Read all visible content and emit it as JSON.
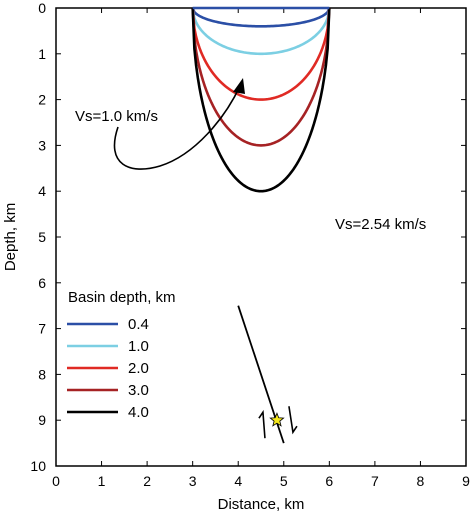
{
  "chart_data": {
    "type": "line",
    "xlabel": "Distance, km",
    "ylabel": "Depth, km",
    "xlim": [
      0,
      9
    ],
    "ylim": [
      0,
      10
    ],
    "y_inverted": true,
    "x_ticks": [
      "0",
      "1",
      "2",
      "3",
      "4",
      "5",
      "6",
      "7",
      "8",
      "9"
    ],
    "y_ticks": [
      "0",
      "1",
      "2",
      "3",
      "4",
      "5",
      "6",
      "7",
      "8",
      "9",
      "10"
    ],
    "grid": false,
    "legend_title": "Basin depth, km",
    "legend_position": "lower-left",
    "series": [
      {
        "name": "0.4",
        "color": "#2b4fa6",
        "basin_depth": 0.4,
        "x_range": [
          3,
          6
        ],
        "center_x": 4.5
      },
      {
        "name": "1.0",
        "color": "#7ccfe3",
        "basin_depth": 1.0,
        "x_range": [
          3,
          6
        ],
        "center_x": 4.5
      },
      {
        "name": "2.0",
        "color": "#e02a24",
        "basin_depth": 2.0,
        "x_range": [
          3,
          6
        ],
        "center_x": 4.5
      },
      {
        "name": "3.0",
        "color": "#a62224",
        "basin_depth": 3.0,
        "x_range": [
          3,
          6
        ],
        "center_x": 4.5
      },
      {
        "name": "4.0",
        "color": "#000000",
        "basin_depth": 4.0,
        "x_range": [
          3,
          6
        ],
        "center_x": 4.5
      }
    ],
    "annotations": {
      "basin_velocity": "Vs=1.0 km/s",
      "rock_velocity": "Vs=2.54 km/s"
    },
    "fault": {
      "from": [
        4.0,
        6.5
      ],
      "to": [
        5.0,
        9.5
      ]
    },
    "hypocenter": {
      "x": 4.85,
      "y": 9.0,
      "color": "#f5e81c"
    }
  }
}
